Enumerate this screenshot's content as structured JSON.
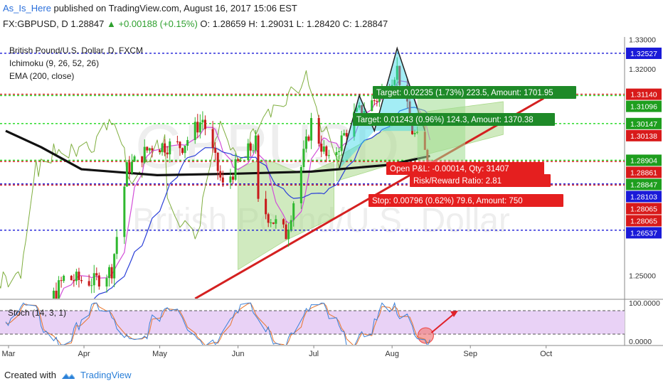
{
  "header": {
    "author": "As_Is_Here",
    "published_text": "published on TradingView.com, August 16, 2017 15:06 EST",
    "symbol": "FX:GBPUSD, D",
    "last": "1.28847",
    "change": "▲ +0.00188 (+0.15%)",
    "ohlc": "O: 1.28659 H: 1.29031 L: 1.28420 C: 1.28847"
  },
  "legend": {
    "title": "British Pound/U.S. Dollar, D, FXCM",
    "ichimoku": "Ichimoku (9, 26, 52, 26)",
    "ema": "EMA (200, close)"
  },
  "watermark": {
    "symbol": "GBPUSD",
    "name": "British Pound/U.S. Dollar"
  },
  "stoch": {
    "label": "Stoch (14, 3, 1)",
    "upper_level_label": "100.0000",
    "lower_level_label": "0.0000"
  },
  "footer": {
    "created_with": "Created with",
    "brand": "TradingView"
  },
  "colors": {
    "candle_up": "#2fb82f",
    "candle_down": "#c81a1a",
    "ema": "#111111",
    "tenkan": "#d24fd8",
    "kijun": "#2a3fd8",
    "chikou": "#7fae3f",
    "cloud_bull": "#a9d98a",
    "cloud_bear": "#e9b0b0",
    "blue_level": "#1a1ad8",
    "red_level": "#d81a1a",
    "green_level": "#1ad81a",
    "trendline": "#d42020",
    "target_box": "#1e8a28",
    "stop_box": "#e51f1f",
    "stoch_bg": "#e5c9f4",
    "stoch_k": "#3a80d8",
    "stoch_d": "#e8742c"
  },
  "chart_data": {
    "type": "candlestick",
    "title": "British Pound/U.S. Dollar, D, FXCM",
    "x_tick_labels": [
      "Mar",
      "Apr",
      "May",
      "Jun",
      "Jul",
      "Aug",
      "Sep",
      "Oct"
    ],
    "y_tick_labels": [
      "1.33000",
      "1.32000",
      "1.25000"
    ],
    "ylim": [
      1.2422,
      1.3308
    ],
    "horizontal_levels": [
      {
        "label": "1.32527",
        "value": 1.32527,
        "color": "blue"
      },
      {
        "label": "1.31140",
        "value": 1.3114,
        "color": "red"
      },
      {
        "label": "1.31096",
        "value": 1.31096,
        "color": "green"
      },
      {
        "label": "1.30147",
        "value": 1.30147,
        "color": "green"
      },
      {
        "label": "1.30138",
        "value": 1.30138,
        "color": "red"
      },
      {
        "label": "1.28904",
        "value": 1.28904,
        "color": "green"
      },
      {
        "label": "1.28861",
        "value": 1.28861,
        "color": "red"
      },
      {
        "label": "1.28847",
        "value": 1.28847,
        "color": "green"
      },
      {
        "label": "1.28103",
        "value": 1.28103,
        "color": "blue"
      },
      {
        "label": "1.28065",
        "value": 1.28065,
        "color": "red"
      },
      {
        "label": "1.28065",
        "value": 1.28065,
        "color": "red"
      },
      {
        "label": "1.26537",
        "value": 1.26537,
        "color": "blue"
      }
    ],
    "close_series": [
      {
        "date": "2017-03-01",
        "close": 1.233
      },
      {
        "date": "2017-03-15",
        "close": 1.236
      },
      {
        "date": "2017-03-24",
        "close": 1.249
      },
      {
        "date": "2017-04-05",
        "close": 1.248
      },
      {
        "date": "2017-04-12",
        "close": 1.252
      },
      {
        "date": "2017-04-18",
        "close": 1.286
      },
      {
        "date": "2017-04-28",
        "close": 1.294
      },
      {
        "date": "2017-05-10",
        "close": 1.294
      },
      {
        "date": "2017-05-18",
        "close": 1.303
      },
      {
        "date": "2017-05-26",
        "close": 1.28
      },
      {
        "date": "2017-06-02",
        "close": 1.289
      },
      {
        "date": "2017-06-08",
        "close": 1.295
      },
      {
        "date": "2017-06-09",
        "close": 1.274
      },
      {
        "date": "2017-06-20",
        "close": 1.264
      },
      {
        "date": "2017-06-30",
        "close": 1.302
      },
      {
        "date": "2017-07-07",
        "close": 1.288
      },
      {
        "date": "2017-07-17",
        "close": 1.304
      },
      {
        "date": "2017-07-26",
        "close": 1.31
      },
      {
        "date": "2017-08-03",
        "close": 1.32
      },
      {
        "date": "2017-08-09",
        "close": 1.299
      },
      {
        "date": "2017-08-16",
        "close": 1.28847
      }
    ],
    "ema_200": [
      {
        "date": "2017-03-01",
        "value": 1.299
      },
      {
        "date": "2017-03-15",
        "value": 1.2935
      },
      {
        "date": "2017-03-31",
        "value": 1.286
      },
      {
        "date": "2017-04-30",
        "value": 1.284
      },
      {
        "date": "2017-05-31",
        "value": 1.2845
      },
      {
        "date": "2017-06-30",
        "value": 1.2852
      },
      {
        "date": "2017-07-31",
        "value": 1.2875
      },
      {
        "date": "2017-08-16",
        "value": 1.2905
      }
    ],
    "trendline_red": [
      {
        "date": "2017-05-15",
        "value": 1.2422
      },
      {
        "date": "2017-09-30",
        "value": 1.31
      }
    ],
    "position": {
      "target_label": "Target: 0.02235 (1.73%) 223.5, Amount: 1701.95",
      "target2_label": "Target: 0.01243 (0.96%) 124.3, Amount: 1370.38",
      "open_pl_label": "Open P&L: -0.00014, Qty: 31407",
      "rr_label": "Risk/Reward Ratio: 2.81",
      "stop_label": "Stop: 0.00796 (0.62%) 79.6, Amount: 750"
    },
    "stoch": {
      "range": [
        0,
        100
      ],
      "levels": [
        80,
        20
      ]
    }
  }
}
